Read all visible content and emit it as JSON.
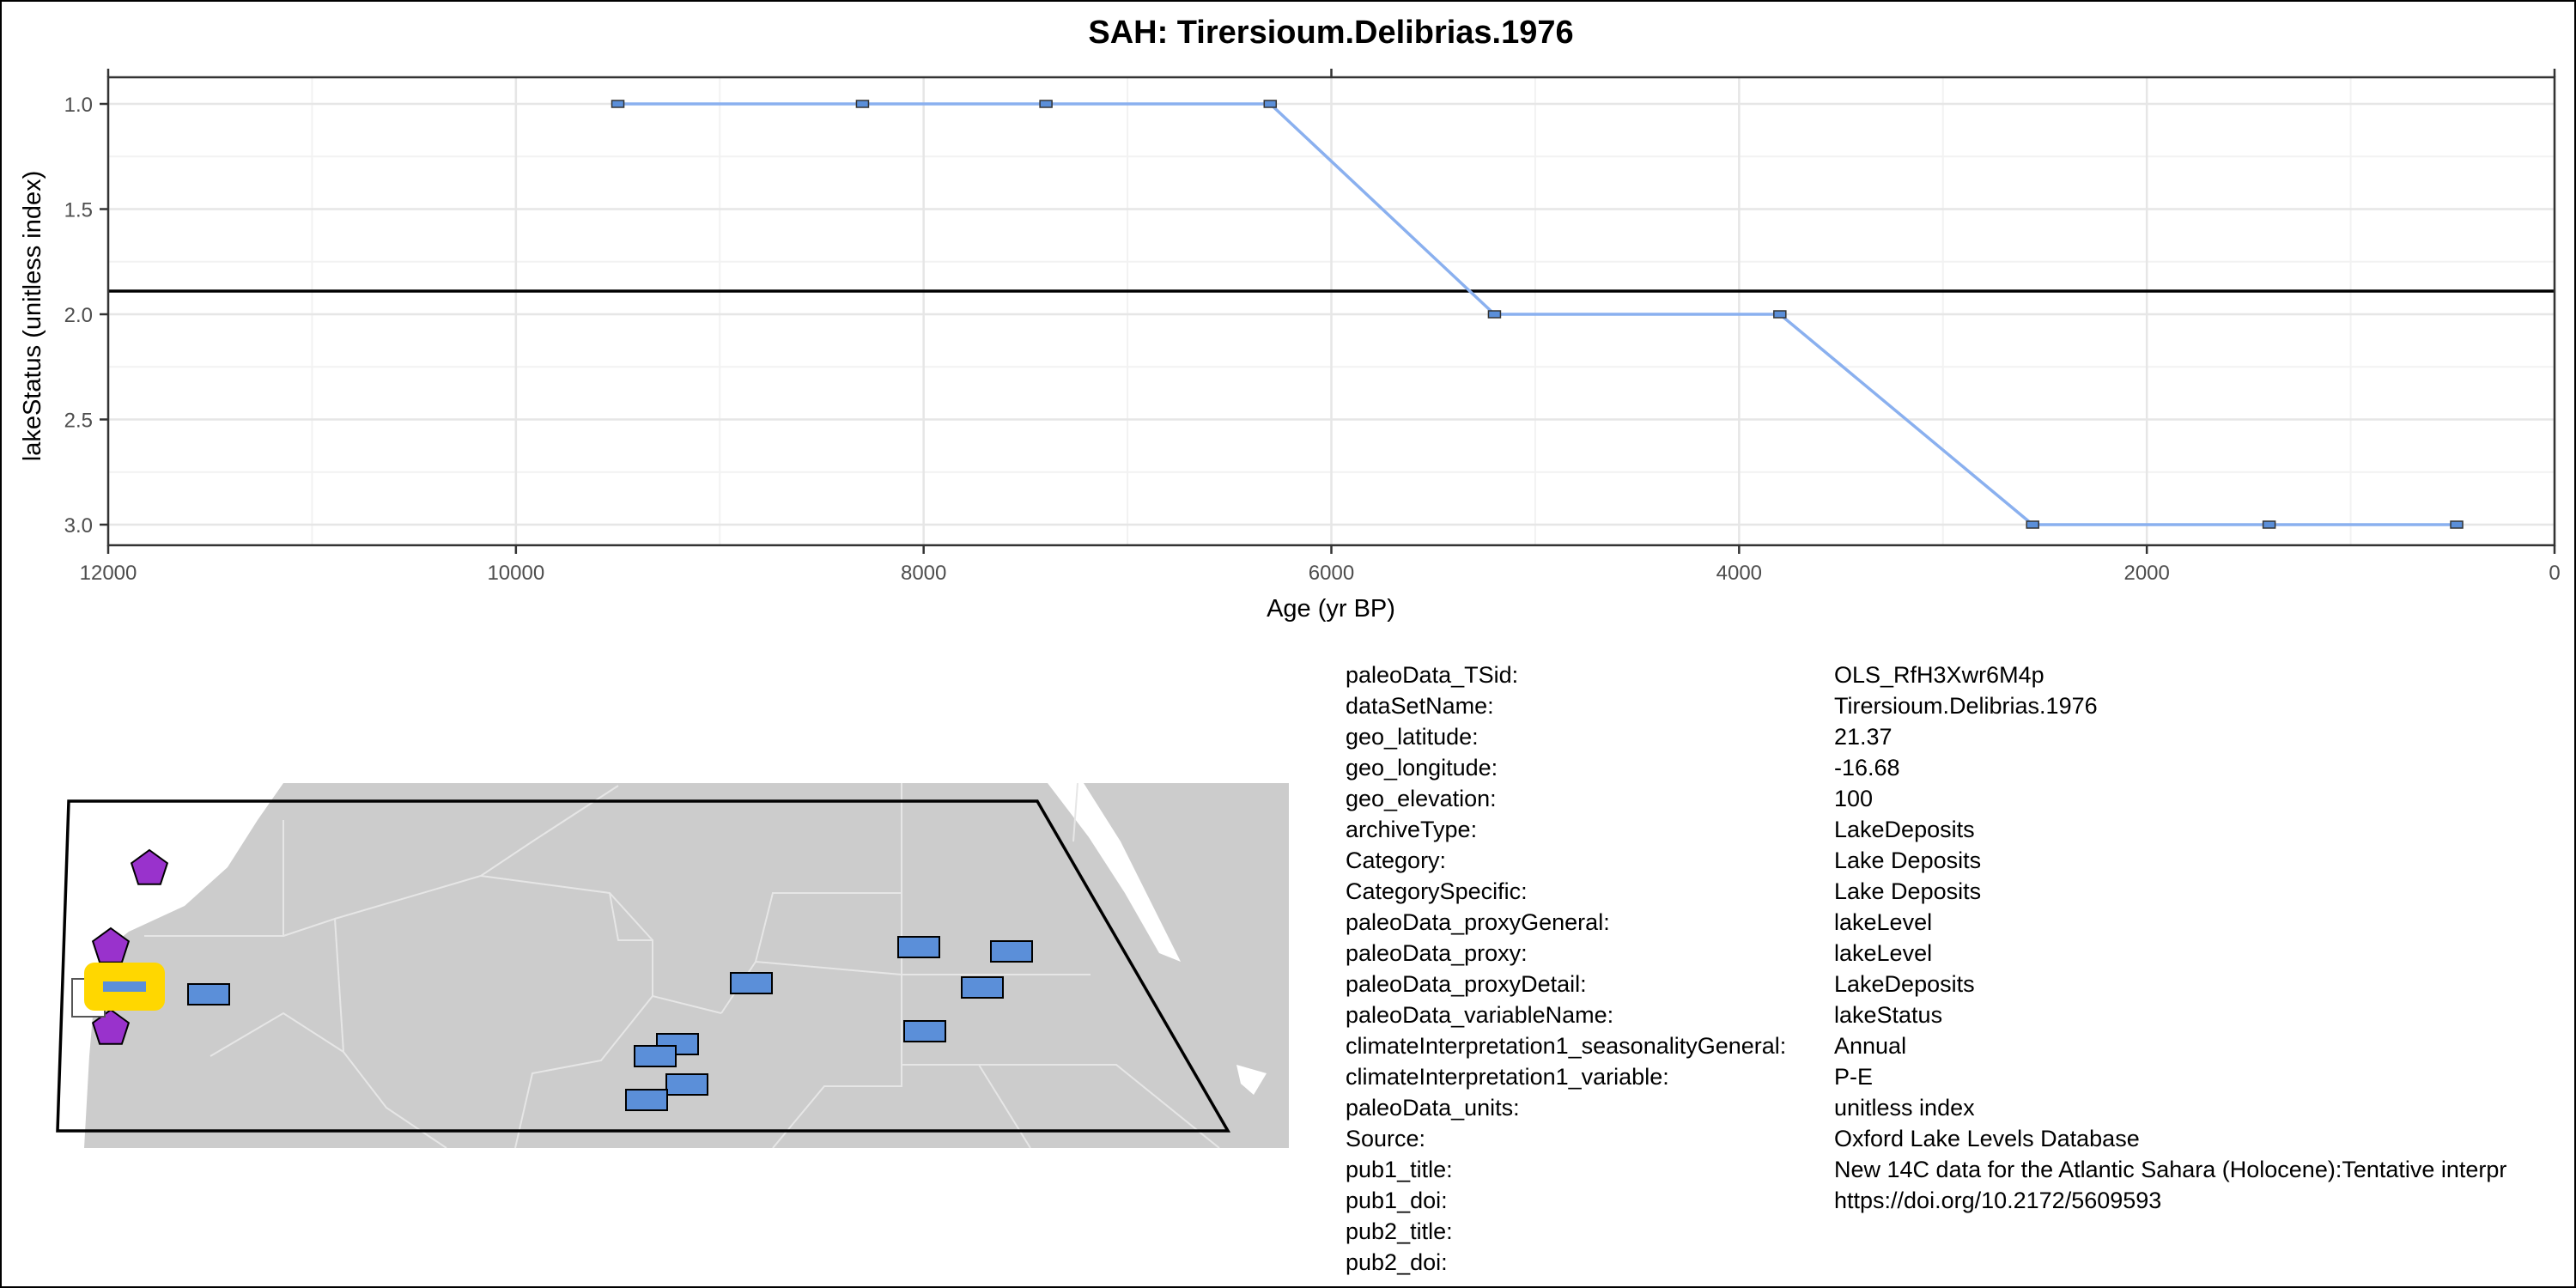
{
  "chart_data": {
    "type": "line",
    "title": "SAH: Tirersioum.Delibrias.1976",
    "xlabel": "Age (yr BP)",
    "ylabel": "lakeStatus (unitless index)",
    "x_reversed": true,
    "y_reversed": true,
    "xlim": [
      12000,
      0
    ],
    "ylim": [
      3.0,
      1.0
    ],
    "x_ticks": [
      12000,
      10000,
      8000,
      6000,
      4000,
      2000,
      0
    ],
    "x_tick_labels": [
      "12000",
      "10000",
      "8000",
      "6000",
      "4000",
      "2000",
      "0"
    ],
    "y_ticks": [
      1.0,
      1.5,
      2.0,
      2.5,
      3.0
    ],
    "y_tick_labels": [
      "1.0",
      "1.5",
      "2.0",
      "2.5",
      "3.0"
    ],
    "grid": true,
    "reference_line_y": 1.89,
    "series": [
      {
        "color": "#8ab0ef",
        "marker_color": "#5b8fd9",
        "x": [
          9500,
          8300,
          7400,
          6300,
          5200,
          3800,
          2560,
          1400,
          480
        ],
        "y": [
          1,
          1,
          1,
          1,
          2,
          2,
          3,
          3,
          3
        ]
      }
    ]
  },
  "map": {
    "land_color": "#cccccc",
    "background_color": "#ffffff",
    "border_color": "#e6e6e6",
    "site_color": "#5b8fd9",
    "highlight_color": "#ffd700",
    "pentagon_color": "#9932cc",
    "sites": [
      "site",
      "site",
      "site",
      "site",
      "site",
      "site",
      "site",
      "site",
      "site",
      "site"
    ],
    "pentagon_sites": [
      "pentagon",
      "pentagon",
      "pentagon"
    ]
  },
  "metadata": [
    {
      "key": "paleoData_TSid:",
      "value": "OLS_RfH3Xwr6M4p"
    },
    {
      "key": "dataSetName:",
      "value": "Tirersioum.Delibrias.1976"
    },
    {
      "key": "geo_latitude:",
      "value": "21.37"
    },
    {
      "key": "geo_longitude:",
      "value": "-16.68"
    },
    {
      "key": "geo_elevation:",
      "value": "100"
    },
    {
      "key": "archiveType:",
      "value": "LakeDeposits"
    },
    {
      "key": "Category:",
      "value": "Lake Deposits"
    },
    {
      "key": "CategorySpecific:",
      "value": "Lake Deposits"
    },
    {
      "key": "paleoData_proxyGeneral:",
      "value": "lakeLevel"
    },
    {
      "key": "paleoData_proxy:",
      "value": "lakeLevel"
    },
    {
      "key": "paleoData_proxyDetail:",
      "value": "LakeDeposits"
    },
    {
      "key": "paleoData_variableName:",
      "value": "lakeStatus"
    },
    {
      "key": "climateInterpretation1_seasonalityGeneral:",
      "value": "Annual"
    },
    {
      "key": "climateInterpretation1_variable:",
      "value": "P-E"
    },
    {
      "key": "paleoData_units:",
      "value": "unitless index"
    },
    {
      "key": "Source:",
      "value": "Oxford Lake Levels Database"
    },
    {
      "key": "pub1_title:",
      "value": "New 14C data for the Atlantic Sahara (Holocene):Tentative interpr"
    },
    {
      "key": "pub1_doi:",
      "value": "https://doi.org/10.2172/5609593"
    },
    {
      "key": "pub2_title:",
      "value": ""
    },
    {
      "key": "pub2_doi:",
      "value": ""
    }
  ]
}
